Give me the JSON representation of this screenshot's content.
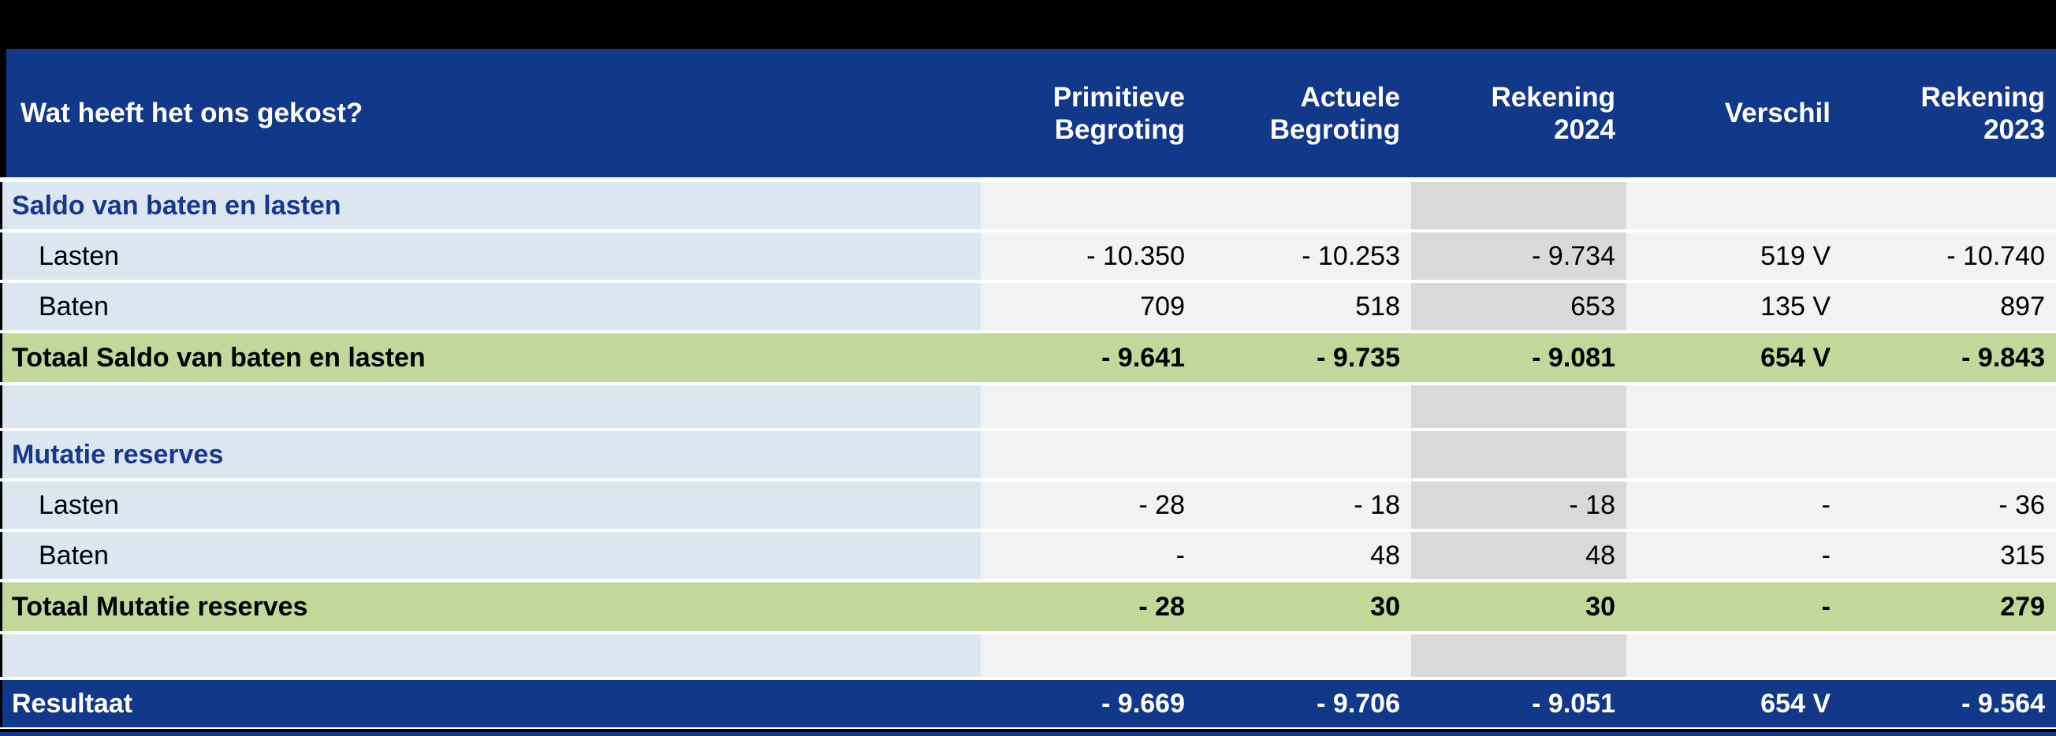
{
  "colors": {
    "header_blue": "#12388A",
    "light_blue": "#DCE6F1",
    "light_gray": "#F2F2F2",
    "dark_gray": "#D9D9D9",
    "green": "#C4D79B",
    "section_text": "#16388C"
  },
  "header": {
    "title": "Wat heeft het ons gekost?",
    "columns": [
      "Primitieve\nBegroting",
      "Actuele\nBegroting",
      "Rekening\n2024",
      "Verschil",
      "Rekening\n2023"
    ]
  },
  "table": {
    "rows": [
      {
        "type": "section",
        "label": "Saldo van baten en lasten",
        "values": [
          "",
          "",
          "",
          "",
          ""
        ]
      },
      {
        "type": "item",
        "label": "Lasten",
        "values": [
          "- 10.350",
          "- 10.253",
          "- 9.734",
          "519 V",
          "- 10.740"
        ]
      },
      {
        "type": "item",
        "label": "Baten",
        "values": [
          "709",
          "518",
          "653",
          "135 V",
          "897"
        ]
      },
      {
        "type": "total",
        "label": "Totaal Saldo van baten en lasten",
        "values": [
          "- 9.641",
          "- 9.735",
          "- 9.081",
          "654 V",
          "- 9.843"
        ]
      },
      {
        "type": "spacer",
        "label": "",
        "values": [
          "",
          "",
          "",
          "",
          ""
        ]
      },
      {
        "type": "section",
        "label": "Mutatie reserves",
        "values": [
          "",
          "",
          "",
          "",
          ""
        ]
      },
      {
        "type": "item",
        "label": "Lasten",
        "values": [
          "- 28",
          "- 18",
          "- 18",
          "-",
          "- 36"
        ]
      },
      {
        "type": "item",
        "label": "Baten",
        "values": [
          "-",
          "48",
          "48",
          "-",
          "315"
        ]
      },
      {
        "type": "total",
        "label": "Totaal Mutatie reserves",
        "values": [
          "- 28",
          "30",
          "30",
          "-",
          "279"
        ]
      },
      {
        "type": "spacer",
        "label": "",
        "values": [
          "",
          "",
          "",
          "",
          ""
        ]
      },
      {
        "type": "result",
        "label": "Resultaat",
        "values": [
          "- 9.669",
          "- 9.706",
          "- 9.051",
          "654 V",
          "- 9.564"
        ]
      }
    ]
  }
}
